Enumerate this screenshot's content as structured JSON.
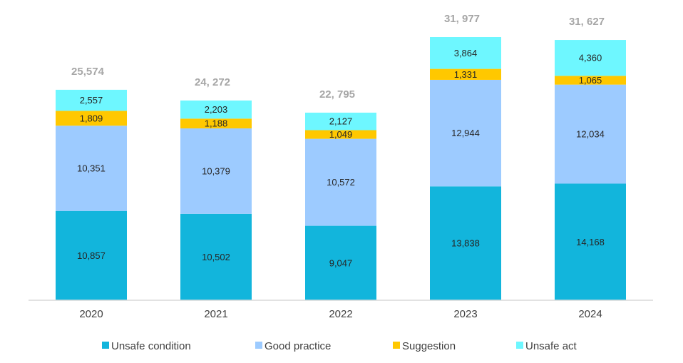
{
  "chart_data": {
    "type": "bar",
    "stacked": true,
    "title": "",
    "xlabel": "",
    "ylabel": "",
    "categories": [
      "2020",
      "2021",
      "2022",
      "2023",
      "2024"
    ],
    "series": [
      {
        "name": "Unsafe condition",
        "color": "#12b5dc",
        "values": [
          10857,
          10502,
          9047,
          13838,
          14168
        ],
        "labels": [
          "10,857",
          "10,502",
          "9,047",
          "13,838",
          "14,168"
        ]
      },
      {
        "name": "Good practice",
        "color": "#9dcbff",
        "values": [
          10351,
          10379,
          10572,
          12944,
          12034
        ],
        "labels": [
          "10,351",
          "10,379",
          "10,572",
          "12,944",
          "12,034"
        ]
      },
      {
        "name": "Suggestion",
        "color": "#ffc800",
        "values": [
          1809,
          1188,
          1049,
          1331,
          1065
        ],
        "labels": [
          "1,809",
          "1,188",
          "1,049",
          "1,331",
          "1,065"
        ]
      },
      {
        "name": "Unsafe act",
        "color": "#6ef7ff",
        "values": [
          2557,
          2203,
          2127,
          3864,
          4360
        ],
        "labels": [
          "2,557",
          "2,203",
          "2,127",
          "3,864",
          "4,360"
        ]
      }
    ],
    "totals": [
      25574,
      24272,
      22795,
      31977,
      31627
    ],
    "total_labels": [
      "25,574",
      "24, 272",
      "22, 795",
      "31, 977",
      "31, 627"
    ],
    "ylim": [
      0,
      32000
    ],
    "grid": false,
    "legend_position": "bottom"
  }
}
